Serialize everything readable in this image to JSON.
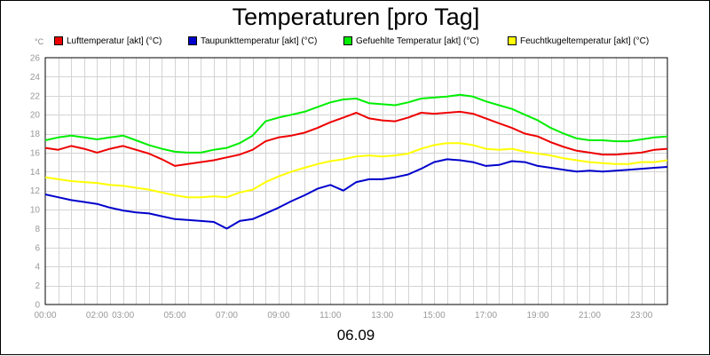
{
  "chart_data": {
    "type": "line",
    "title": "Temperaturen [pro Tag]",
    "unit_label": "°C",
    "date_label": "06.09",
    "xlim": [
      0,
      24
    ],
    "ylim": [
      0,
      26
    ],
    "grid": true,
    "legend_position": "top",
    "y_ticks": [
      "0",
      "2",
      "4",
      "6",
      "8",
      "10",
      "12",
      "14",
      "16",
      "18",
      "20",
      "22",
      "24",
      "26"
    ],
    "x_tick_labels": [
      "00:00",
      "02:00",
      "03:00",
      "05:00",
      "07:00",
      "09:00",
      "11:00",
      "13:00",
      "15:00",
      "17:00",
      "19:00",
      "21:00",
      "23:00"
    ],
    "x_tick_hours": [
      0,
      2,
      3,
      5,
      7,
      9,
      11,
      13,
      15,
      17,
      19,
      21,
      23
    ],
    "series": [
      {
        "name": "Lufttemperatur [akt] (°C)",
        "color": "#ee0000",
        "x": [
          0,
          0.5,
          1,
          1.5,
          2,
          2.5,
          3,
          3.5,
          4,
          4.5,
          5,
          5.5,
          6,
          6.5,
          7,
          7.5,
          8,
          8.5,
          9,
          9.5,
          10,
          10.5,
          11,
          11.5,
          12,
          12.5,
          13,
          13.5,
          14,
          14.5,
          15,
          15.5,
          16,
          16.5,
          17,
          17.5,
          18,
          18.5,
          19,
          19.5,
          20,
          20.5,
          21,
          21.5,
          22,
          22.5,
          23,
          23.5,
          24
        ],
        "values": [
          16.5,
          16.3,
          16.7,
          16.4,
          16.0,
          16.4,
          16.7,
          16.3,
          15.9,
          15.3,
          14.6,
          14.8,
          15.0,
          15.2,
          15.5,
          15.8,
          16.3,
          17.2,
          17.6,
          17.8,
          18.1,
          18.6,
          19.2,
          19.7,
          20.2,
          19.6,
          19.4,
          19.3,
          19.7,
          20.2,
          20.1,
          20.2,
          20.3,
          20.1,
          19.6,
          19.1,
          18.6,
          18.0,
          17.7,
          17.1,
          16.6,
          16.2,
          16.0,
          15.8,
          15.8,
          15.9,
          16.0,
          16.3,
          16.4
        ]
      },
      {
        "name": "Taupunkttemperatur [akt] (°C)",
        "color": "#0000cc",
        "x": [
          0,
          0.5,
          1,
          1.5,
          2,
          2.5,
          3,
          3.5,
          4,
          4.5,
          5,
          5.5,
          6,
          6.5,
          7,
          7.5,
          8,
          8.5,
          9,
          9.5,
          10,
          10.5,
          11,
          11.5,
          12,
          12.5,
          13,
          13.5,
          14,
          14.5,
          15,
          15.5,
          16,
          16.5,
          17,
          17.5,
          18,
          18.5,
          19,
          19.5,
          20,
          20.5,
          21,
          21.5,
          22,
          22.5,
          23,
          23.5,
          24
        ],
        "values": [
          11.6,
          11.3,
          11.0,
          10.8,
          10.6,
          10.2,
          9.9,
          9.7,
          9.6,
          9.3,
          9.0,
          8.9,
          8.8,
          8.7,
          8.0,
          8.8,
          9.0,
          9.6,
          10.2,
          10.9,
          11.5,
          12.2,
          12.6,
          12.0,
          12.9,
          13.2,
          13.2,
          13.4,
          13.7,
          14.3,
          15.0,
          15.3,
          15.2,
          15.0,
          14.6,
          14.7,
          15.1,
          15.0,
          14.6,
          14.4,
          14.2,
          14.0,
          14.1,
          14.0,
          14.1,
          14.2,
          14.3,
          14.4,
          14.5
        ]
      },
      {
        "name": "Gefuehlte Temperatur [akt] (°C)",
        "color": "#00ee00",
        "x": [
          0,
          0.5,
          1,
          1.5,
          2,
          2.5,
          3,
          3.5,
          4,
          4.5,
          5,
          5.5,
          6,
          6.5,
          7,
          7.5,
          8,
          8.5,
          9,
          9.5,
          10,
          10.5,
          11,
          11.5,
          12,
          12.5,
          13,
          13.5,
          14,
          14.5,
          15,
          15.5,
          16,
          16.5,
          17,
          17.5,
          18,
          18.5,
          19,
          19.5,
          20,
          20.5,
          21,
          21.5,
          22,
          22.5,
          23,
          23.5,
          24
        ],
        "values": [
          17.3,
          17.6,
          17.8,
          17.6,
          17.4,
          17.6,
          17.8,
          17.3,
          16.8,
          16.4,
          16.1,
          16.0,
          16.0,
          16.3,
          16.5,
          17.0,
          17.8,
          19.3,
          19.7,
          20.0,
          20.3,
          20.8,
          21.3,
          21.6,
          21.7,
          21.2,
          21.1,
          21.0,
          21.3,
          21.7,
          21.8,
          21.9,
          22.1,
          21.9,
          21.4,
          21.0,
          20.6,
          20.0,
          19.4,
          18.6,
          18.0,
          17.5,
          17.3,
          17.3,
          17.2,
          17.2,
          17.4,
          17.6,
          17.7
        ]
      },
      {
        "name": "Feuchtkugeltemperatur [akt] (°C)",
        "color": "#ffff00",
        "x": [
          0,
          0.5,
          1,
          1.5,
          2,
          2.5,
          3,
          3.5,
          4,
          4.5,
          5,
          5.5,
          6,
          6.5,
          7,
          7.5,
          8,
          8.5,
          9,
          9.5,
          10,
          10.5,
          11,
          11.5,
          12,
          12.5,
          13,
          13.5,
          14,
          14.5,
          15,
          15.5,
          16,
          16.5,
          17,
          17.5,
          18,
          18.5,
          19,
          19.5,
          20,
          20.5,
          21,
          21.5,
          22,
          22.5,
          23,
          23.5,
          24
        ],
        "values": [
          13.4,
          13.2,
          13.0,
          12.9,
          12.8,
          12.6,
          12.5,
          12.3,
          12.1,
          11.8,
          11.5,
          11.3,
          11.3,
          11.4,
          11.3,
          11.8,
          12.1,
          12.9,
          13.5,
          14.0,
          14.4,
          14.8,
          15.1,
          15.3,
          15.6,
          15.7,
          15.6,
          15.7,
          15.9,
          16.4,
          16.8,
          17.0,
          17.0,
          16.8,
          16.4,
          16.3,
          16.4,
          16.1,
          15.9,
          15.7,
          15.4,
          15.2,
          15.0,
          14.9,
          14.8,
          14.8,
          15.0,
          15.0,
          15.2
        ]
      }
    ]
  }
}
